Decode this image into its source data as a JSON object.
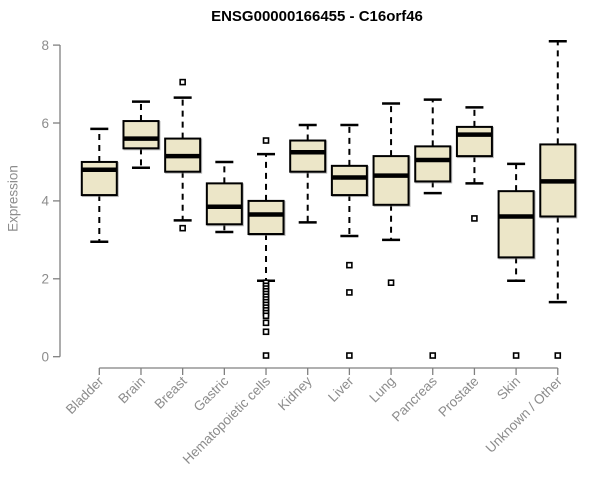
{
  "title": "ENSG00000166455 - C16orf46",
  "chart_data": {
    "type": "boxplot",
    "title": "ENSG00000166455 - C16orf46",
    "xlabel": "",
    "ylabel": "Expression",
    "ylim": [
      0,
      8.2
    ],
    "yticks": [
      0,
      2,
      4,
      6,
      8
    ],
    "ytick_labels": [
      "0",
      "2",
      "4",
      "6",
      "8"
    ],
    "grid": false,
    "legend": "none",
    "box_fill": "#ece6c8",
    "box_stroke": "#000000",
    "median_color": "#000000",
    "whisker_color": "#000000",
    "outlier_fill": "#ffffff",
    "outlier_stroke": "#000000",
    "axis_color": "#808080",
    "label_color": "#8c8c8c",
    "categories": [
      "Bladder",
      "Brain",
      "Breast",
      "Gastric",
      "Hematopoietic cells",
      "Kidney",
      "Liver",
      "Lung",
      "Pancreas",
      "Prostate",
      "Skin",
      "Unknown / Other"
    ],
    "series": [
      {
        "category": "Bladder",
        "whisker_low": 2.95,
        "q1": 4.15,
        "median": 4.8,
        "q3": 5.0,
        "whisker_high": 5.85,
        "outliers": []
      },
      {
        "category": "Brain",
        "whisker_low": 4.85,
        "q1": 5.35,
        "median": 5.6,
        "q3": 6.05,
        "whisker_high": 6.55,
        "outliers": []
      },
      {
        "category": "Breast",
        "whisker_low": 3.5,
        "q1": 4.75,
        "median": 5.15,
        "q3": 5.6,
        "whisker_high": 6.65,
        "outliers": [
          7.05,
          3.3
        ]
      },
      {
        "category": "Gastric",
        "whisker_low": 3.2,
        "q1": 3.4,
        "median": 3.85,
        "q3": 4.45,
        "whisker_high": 5.0,
        "outliers": []
      },
      {
        "category": "Hematopoietic cells",
        "whisker_low": 1.95,
        "q1": 3.15,
        "median": 3.65,
        "q3": 4.0,
        "whisker_high": 5.2,
        "outliers": [
          5.55,
          1.9,
          1.82,
          1.75,
          1.68,
          1.61,
          1.54,
          1.47,
          1.4,
          1.33,
          1.26,
          1.19,
          1.12,
          1.05,
          0.87,
          0.64,
          0.03
        ]
      },
      {
        "category": "Kidney",
        "whisker_low": 3.45,
        "q1": 4.75,
        "median": 5.25,
        "q3": 5.55,
        "whisker_high": 5.95,
        "outliers": []
      },
      {
        "category": "Liver",
        "whisker_low": 3.1,
        "q1": 4.15,
        "median": 4.6,
        "q3": 4.9,
        "whisker_high": 5.95,
        "outliers": [
          2.35,
          1.65,
          0.03
        ]
      },
      {
        "category": "Lung",
        "whisker_low": 3.0,
        "q1": 3.9,
        "median": 4.65,
        "q3": 5.15,
        "whisker_high": 6.5,
        "outliers": [
          1.9
        ]
      },
      {
        "category": "Pancreas",
        "whisker_low": 4.2,
        "q1": 4.5,
        "median": 5.05,
        "q3": 5.4,
        "whisker_high": 6.6,
        "outliers": [
          0.03
        ]
      },
      {
        "category": "Prostate",
        "whisker_low": 4.45,
        "q1": 5.15,
        "median": 5.7,
        "q3": 5.9,
        "whisker_high": 6.4,
        "outliers": [
          3.55
        ]
      },
      {
        "category": "Skin",
        "whisker_low": 1.95,
        "q1": 2.55,
        "median": 3.6,
        "q3": 4.25,
        "whisker_high": 4.95,
        "outliers": [
          0.03
        ]
      },
      {
        "category": "Unknown / Other",
        "whisker_low": 1.4,
        "q1": 3.6,
        "median": 4.5,
        "q3": 5.45,
        "whisker_high": 8.1,
        "outliers": [
          0.03
        ]
      }
    ]
  }
}
